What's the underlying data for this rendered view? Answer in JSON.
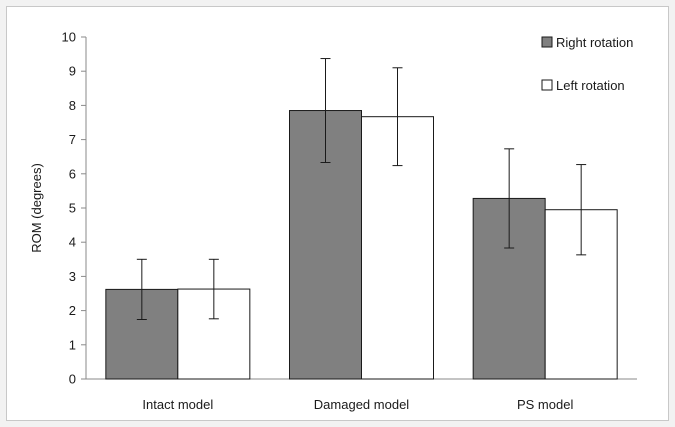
{
  "chart_data": {
    "type": "bar",
    "categories": [
      "Intact model",
      "Damaged model",
      "PS model"
    ],
    "series": [
      {
        "name": "Right rotation",
        "values": [
          2.62,
          7.85,
          5.28
        ],
        "errors": [
          0.88,
          1.52,
          1.45
        ],
        "color": "#808080"
      },
      {
        "name": "Left rotation",
        "values": [
          2.63,
          7.67,
          4.95
        ],
        "errors": [
          0.87,
          1.43,
          1.32
        ],
        "color": "#ffffff"
      }
    ],
    "xlabel": "",
    "ylabel": "ROM (degrees)",
    "ylim": [
      0,
      10
    ],
    "yticks": [
      "0",
      "1",
      "2",
      "3",
      "4",
      "5",
      "6",
      "7",
      "8",
      "9",
      "10"
    ],
    "grid": false,
    "legend_position": "top-right"
  }
}
